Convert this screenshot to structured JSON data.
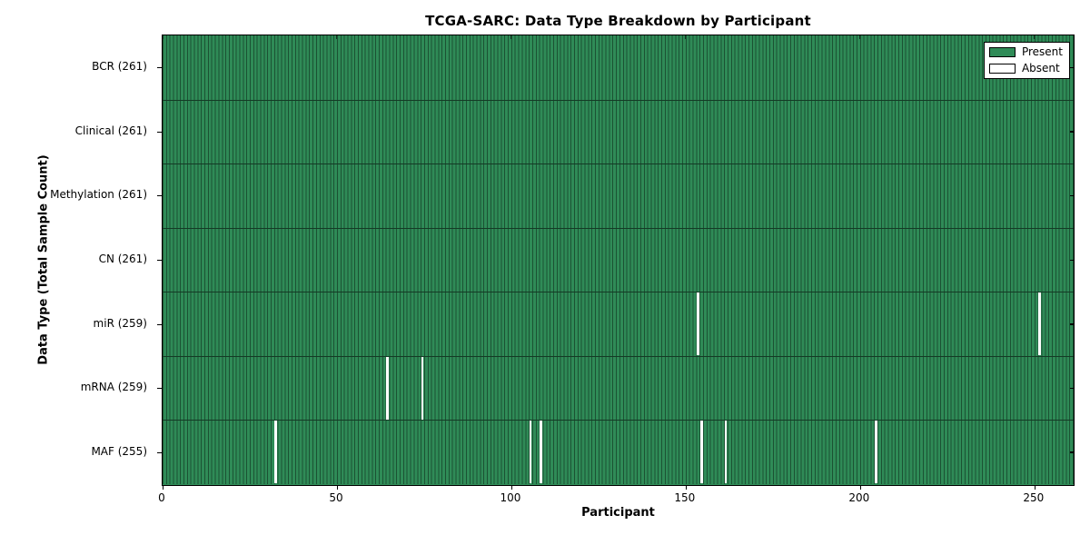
{
  "chart_data": {
    "type": "heatmap",
    "title": "TCGA-SARC: Data Type Breakdown by Participant",
    "xlabel": "Participant",
    "ylabel": "Data Type (Total Sample Count)",
    "n_participants": 261,
    "x_range": [
      0,
      261
    ],
    "x_ticks": [
      0,
      50,
      100,
      150,
      200,
      250
    ],
    "grid": false,
    "legend": {
      "position": "upper right",
      "items": [
        {
          "label": "Present",
          "color": "#2f8b57"
        },
        {
          "label": "Absent",
          "color": "#ffffff"
        }
      ]
    },
    "colors": {
      "present_fill": "#2f8b57",
      "bar_edge": "#1b5233",
      "row_separator": "#143a25",
      "absent_fill": "#ffffff",
      "axis": "#000000"
    },
    "rows": [
      {
        "label": "BCR",
        "display": "BCR (261)",
        "total": 261,
        "absent_participants": []
      },
      {
        "label": "Clinical",
        "display": "Clinical (261)",
        "total": 261,
        "absent_participants": []
      },
      {
        "label": "Methylation",
        "display": "Methylation (261)",
        "total": 261,
        "absent_participants": []
      },
      {
        "label": "CN",
        "display": "CN (261)",
        "total": 261,
        "absent_participants": []
      },
      {
        "label": "miR",
        "display": "miR (259)",
        "total": 259,
        "absent_participants": [
          153,
          251
        ]
      },
      {
        "label": "mRNA",
        "display": "mRNA (259)",
        "total": 259,
        "absent_participants": [
          64,
          74
        ]
      },
      {
        "label": "MAF",
        "display": "MAF (255)",
        "total": 255,
        "absent_participants": [
          32,
          105,
          108,
          154,
          161,
          204
        ]
      }
    ]
  }
}
